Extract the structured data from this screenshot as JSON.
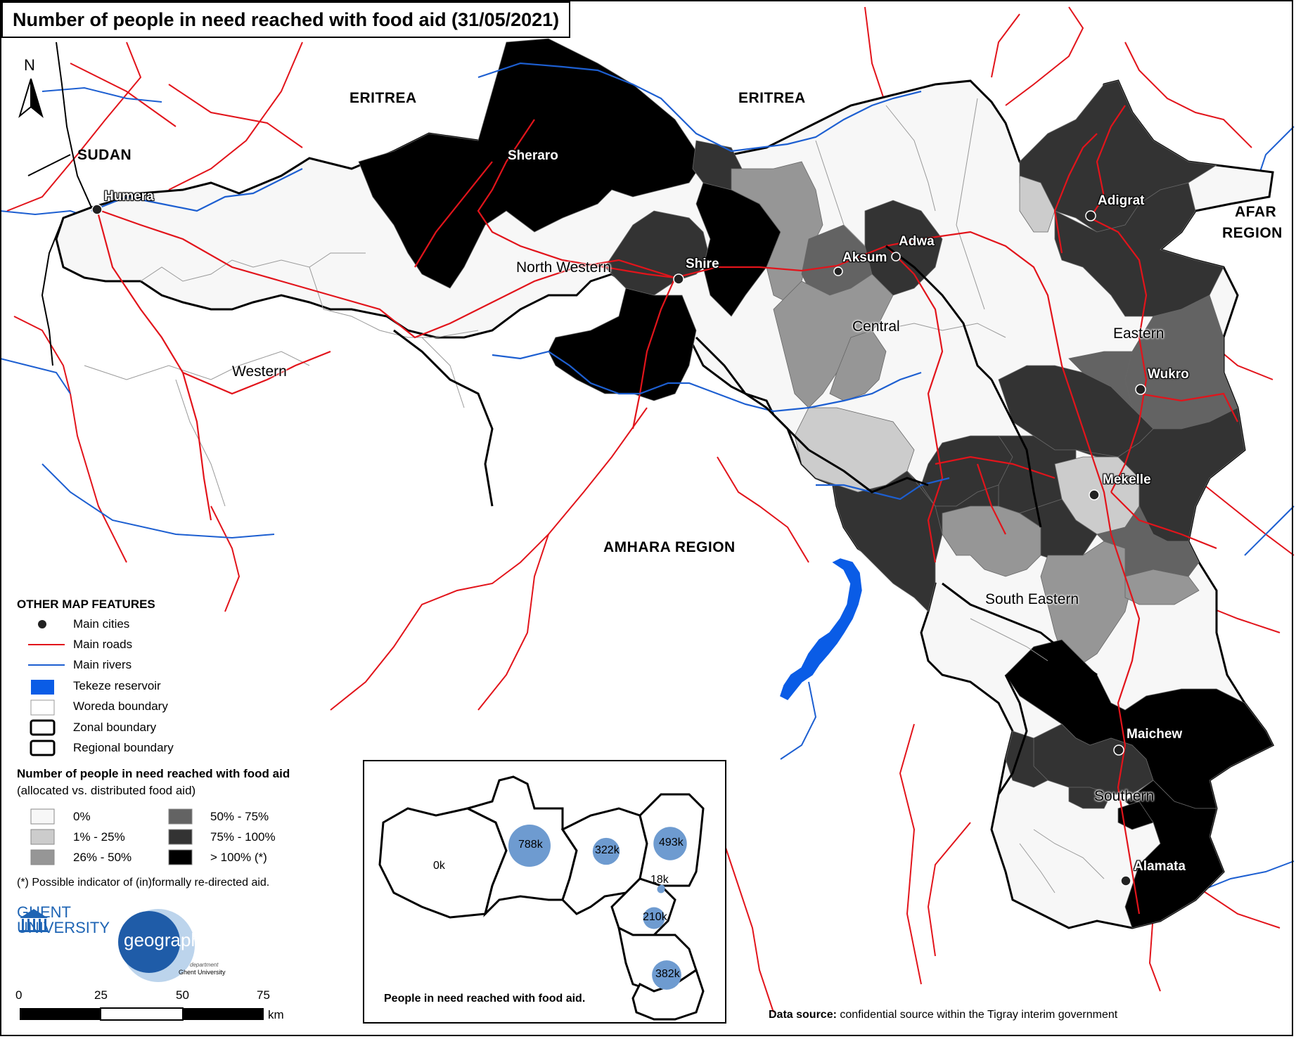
{
  "title": "Number of people in need reached with food aid (31/05/2021)",
  "north_label": "N",
  "colors": {
    "class_0": "#f7f7f7",
    "class_1_25": "#cccccc",
    "class_26_50": "#969696",
    "class_50_75": "#636363",
    "class_75_100": "#333333",
    "class_over_100": "#000000",
    "roads": "#e2141b",
    "rivers": "#1d5fd1",
    "reservoir": "#0a5ce6",
    "bubble": "#6e9bd0"
  },
  "countries": {
    "eritrea_west": "ERITREA",
    "eritrea_east": "ERITREA",
    "sudan": "SUDAN",
    "amhara": "AMHARA REGION",
    "afar_line1": "AFAR",
    "afar_line2": "REGION"
  },
  "zones": [
    {
      "id": "western",
      "name": "Western",
      "class": "0%"
    },
    {
      "id": "north_western",
      "name": "North Western",
      "class": "mixed"
    },
    {
      "id": "central",
      "name": "Central",
      "class": "mixed"
    },
    {
      "id": "eastern",
      "name": "Eastern",
      "class": "mixed"
    },
    {
      "id": "south_eastern",
      "name": "South Eastern",
      "class": "mixed"
    },
    {
      "id": "southern",
      "name": "Southern",
      "class": "mixed"
    }
  ],
  "cities": [
    "Humera",
    "Sheraro",
    "Shire",
    "Aksum",
    "Adwa",
    "Adigrat",
    "Wukro",
    "Mekelle",
    "Maichew",
    "Alamata"
  ],
  "legend": {
    "other_features_title": "OTHER MAP FEATURES",
    "features": [
      {
        "icon": "city-dot",
        "label": "Main cities"
      },
      {
        "icon": "red-line",
        "label": "Main roads"
      },
      {
        "icon": "blue-line",
        "label": "Main rivers"
      },
      {
        "icon": "blue-fill",
        "label": "Tekeze reservoir"
      },
      {
        "icon": "thin-box",
        "label": "Woreda boundary"
      },
      {
        "icon": "thick-box",
        "label": "Zonal boundary"
      },
      {
        "icon": "thick-box",
        "label": "Regional boundary"
      }
    ],
    "classes_title": "Number of people in need reached with food aid",
    "classes_subtitle": "(allocated vs. distributed food aid)",
    "classes": [
      {
        "label": "0%",
        "color": "#f7f7f7"
      },
      {
        "label": "1% - 25%",
        "color": "#cccccc"
      },
      {
        "label": "26% - 50%",
        "color": "#969696"
      },
      {
        "label": "50% - 75%",
        "color": "#636363"
      },
      {
        "label": "75% - 100%",
        "color": "#333333"
      },
      {
        "label": "> 100% (*)",
        "color": "#000000"
      }
    ],
    "footnote": "(*) Possible indicator of (in)formally re-directed aid."
  },
  "inset": {
    "caption": "People in need reached with food aid.",
    "bubbles": [
      {
        "zone": "Western",
        "label": "0k",
        "value": 0
      },
      {
        "zone": "North Western",
        "label": "788k",
        "value": 788000
      },
      {
        "zone": "Central",
        "label": "322k",
        "value": 322000
      },
      {
        "zone": "Eastern",
        "label": "493k",
        "value": 493000
      },
      {
        "zone": "Mekelle",
        "label": "18k",
        "value": 18000
      },
      {
        "zone": "South Eastern",
        "label": "210k",
        "value": 210000
      },
      {
        "zone": "Southern",
        "label": "382k",
        "value": 382000
      }
    ]
  },
  "scale_bar": {
    "ticks": [
      "0",
      "25",
      "50",
      "75"
    ],
    "unit": "km"
  },
  "logos": {
    "ghent_line1": "GHENT",
    "ghent_line2": "UNIVERSITY",
    "geo_word": "geography",
    "geo_sub1": "department",
    "geo_sub2": "Ghent University"
  },
  "source": {
    "label": "Data source:",
    "text": " confidential source within the Tigray interim government"
  }
}
